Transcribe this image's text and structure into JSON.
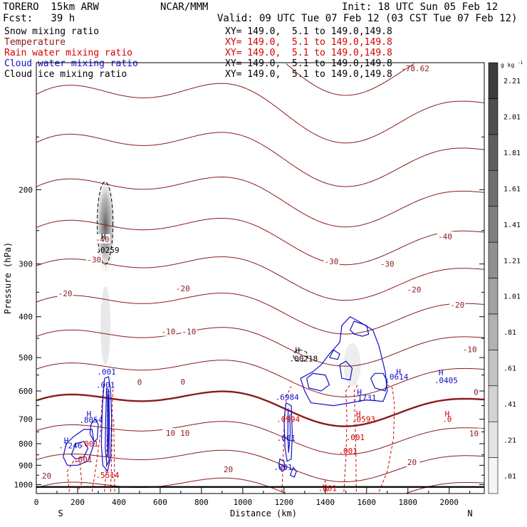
{
  "header": {
    "model": "TORERO  15km ARW",
    "org": "NCAR/MMM",
    "init": "Init: 18 UTC Sun 05 Feb 12",
    "fcst": "Fcst:   39 h",
    "valid": "Valid: 09 UTC Tue 07 Feb 12 (03 CST Tue 07 Feb 12)"
  },
  "legend": [
    {
      "name": "Snow mixing ratio",
      "color": "#000000",
      "xy": "XY= 149.0,  5.1 to 149.0,149.8",
      "xy_color": "#000000"
    },
    {
      "name": "Temperature",
      "color": "#8b1a1a",
      "xy": "XY= 149.0,  5.1 to 149.0,149.8",
      "xy_color": "#d40000"
    },
    {
      "name": "Rain water mixing ratio",
      "color": "#d40000",
      "xy": "XY= 149.0,  5.1 to 149.0,149.8",
      "xy_color": "#d40000"
    },
    {
      "name": "Cloud water mixing ratio",
      "color": "#1010c8",
      "xy": "XY= 149.0,  5.1 to 149.0,149.8",
      "xy_color": "#000000"
    },
    {
      "name": "Cloud ice mixing ratio",
      "color": "#000000",
      "xy": "XY= 149.0,  5.1 to 149.0,149.8",
      "xy_color": "#000000"
    }
  ],
  "chart_data": {
    "type": "cross-section contour",
    "xlabel": "Distance (km)",
    "ylabel": "Pressure (hPa)",
    "xlim": [
      0,
      2170
    ],
    "ylim": [
      1050,
      100
    ],
    "x_ticks": [
      0,
      200,
      400,
      600,
      800,
      1000,
      1200,
      1400,
      1600,
      1800,
      2000
    ],
    "y_ticks": [
      200,
      300,
      400,
      500,
      600,
      700,
      800,
      900,
      1000
    ],
    "y_scale": "log",
    "end_labels": {
      "left": "S",
      "right": "N"
    },
    "colorbar": {
      "unit": "g kg",
      "unit_exp": "-1",
      "levels": [
        0.01,
        0.21,
        0.41,
        0.61,
        0.81,
        1.01,
        1.21,
        1.41,
        1.61,
        1.81,
        2.01,
        2.21
      ],
      "labels": [
        ".01",
        ".21",
        ".41",
        ".61",
        ".81",
        "1.01",
        "1.21",
        "1.41",
        "1.61",
        "1.81",
        "2.01",
        "2.21"
      ]
    },
    "max_label": "-78.62",
    "isotherm_levels": [
      -70,
      -65,
      -60,
      -55,
      -50,
      -45,
      -40,
      -35,
      -30,
      -25,
      -20,
      -15,
      -10,
      -5,
      0,
      5,
      10,
      15,
      20,
      25
    ],
    "isotherm_labels": [
      {
        "text": "-40",
        "x": 320,
        "p": 262
      },
      {
        "text": "-40",
        "x": 1980,
        "p": 258
      },
      {
        "text": "-30",
        "x": 280,
        "p": 293
      },
      {
        "text": "-30",
        "x": 1430,
        "p": 296
      },
      {
        "text": "-30",
        "x": 1700,
        "p": 300
      },
      {
        "text": "-20",
        "x": 140,
        "p": 352
      },
      {
        "text": "-20",
        "x": 710,
        "p": 343
      },
      {
        "text": "-20",
        "x": 1830,
        "p": 345
      },
      {
        "text": "-20",
        "x": 2040,
        "p": 375
      },
      {
        "text": "-10",
        "x": 640,
        "p": 434
      },
      {
        "text": "-10",
        "x": 740,
        "p": 434
      },
      {
        "text": "-10",
        "x": 2100,
        "p": 478
      },
      {
        "text": "0",
        "x": 500,
        "p": 572
      },
      {
        "text": "0",
        "x": 710,
        "p": 570
      },
      {
        "text": "0",
        "x": 2130,
        "p": 604
      },
      {
        "text": "10",
        "x": 650,
        "p": 755
      },
      {
        "text": "10",
        "x": 720,
        "p": 755
      },
      {
        "text": "10",
        "x": 2120,
        "p": 756
      },
      {
        "text": "20",
        "x": 50,
        "p": 952
      },
      {
        "text": "20",
        "x": 930,
        "p": 920
      },
      {
        "text": "20",
        "x": 1820,
        "p": 885
      }
    ],
    "max_labels": [
      {
        "text": "H",
        "x": 325,
        "p": 258,
        "color": "#000000"
      },
      {
        "text": ".0259",
        "x": 345,
        "p": 278,
        "color": "#000000"
      },
      {
        "text": ".001",
        "x": 340,
        "p": 540,
        "color": "#1010c8"
      },
      {
        "text": ".001",
        "x": 335,
        "p": 580,
        "color": "#1010c8"
      },
      {
        "text": "H",
        "x": 255,
        "p": 680,
        "color": "#1010c8"
      },
      {
        "text": ".8054",
        "x": 265,
        "p": 702,
        "color": "#1010c8"
      },
      {
        "text": "H",
        "x": 145,
        "p": 786,
        "color": "#1010c8"
      },
      {
        "text": ".7246",
        "x": 165,
        "p": 808,
        "color": "#1010c8"
      },
      {
        "text": ".001",
        "x": 255,
        "p": 800,
        "color": "#d40000"
      },
      {
        "text": ".001",
        "x": 225,
        "p": 872,
        "color": "#d40000"
      },
      {
        "text": ".5514",
        "x": 345,
        "p": 950,
        "color": "#d40000"
      },
      {
        "text": "H",
        "x": 1265,
        "p": 480,
        "color": "#000000"
      },
      {
        "text": ".00218",
        "x": 1295,
        "p": 503,
        "color": "#000000"
      },
      {
        "text": ".6984",
        "x": 1215,
        "p": 620,
        "color": "#1010c8"
      },
      {
        "text": "H",
        "x": 1565,
        "p": 603,
        "color": "#1010c8"
      },
      {
        "text": ".1731",
        "x": 1590,
        "p": 622,
        "color": "#1010c8"
      },
      {
        "text": ".0614",
        "x": 1745,
        "p": 555,
        "color": "#1010c8"
      },
      {
        "text": "H",
        "x": 1755,
        "p": 540,
        "color": "#1010c8"
      },
      {
        "text": "H",
        "x": 1960,
        "p": 542,
        "color": "#1010c8"
      },
      {
        "text": ".0405",
        "x": 1985,
        "p": 566,
        "color": "#1010c8"
      },
      {
        "text": ".001",
        "x": 1210,
        "p": 775,
        "color": "#1010c8"
      },
      {
        "text": ".001",
        "x": 1195,
        "p": 910,
        "color": "#1010c8"
      },
      {
        "text": ".0994",
        "x": 1220,
        "p": 700,
        "color": "#d40000"
      },
      {
        "text": "H",
        "x": 1560,
        "p": 680,
        "color": "#d40000"
      },
      {
        "text": ".0593",
        "x": 1585,
        "p": 700,
        "color": "#d40000"
      },
      {
        "text": ".001",
        "x": 1545,
        "p": 773,
        "color": "#d40000"
      },
      {
        "text": ".001",
        "x": 1510,
        "p": 832,
        "color": "#d40000"
      },
      {
        "text": ".001",
        "x": 1410,
        "p": 1020,
        "color": "#d40000"
      },
      {
        "text": "H",
        "x": 1990,
        "p": 680,
        "color": "#d40000"
      },
      {
        "text": ".0",
        "x": 1990,
        "p": 700,
        "color": "#d40000"
      }
    ]
  }
}
